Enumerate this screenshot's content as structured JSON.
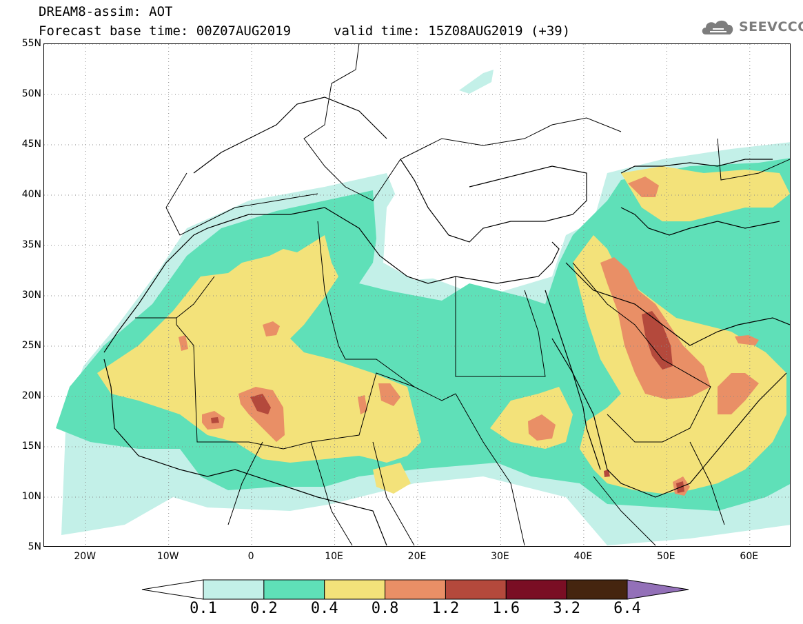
{
  "header": {
    "title": "DREAM8-assim: AOT",
    "base_time": "Forecast base time: 00Z07AUG2019",
    "valid_time": "valid time: 15Z08AUG2019 (+39)"
  },
  "logo": {
    "text": "SEEVCCC",
    "icon": "cloud-icon",
    "color": "#7d7d7d"
  },
  "map": {
    "lon_range": [
      -25,
      65
    ],
    "lat_range": [
      5,
      55
    ],
    "gridlines": "dotted",
    "lat_ticks": [
      {
        "value": 55,
        "label": "55N"
      },
      {
        "value": 50,
        "label": "50N"
      },
      {
        "value": 45,
        "label": "45N"
      },
      {
        "value": 40,
        "label": "40N"
      },
      {
        "value": 35,
        "label": "35N"
      },
      {
        "value": 30,
        "label": "30N"
      },
      {
        "value": 25,
        "label": "25N"
      },
      {
        "value": 20,
        "label": "20N"
      },
      {
        "value": 15,
        "label": "15N"
      },
      {
        "value": 10,
        "label": "10N"
      },
      {
        "value": 5,
        "label": "5N"
      }
    ],
    "lon_ticks": [
      {
        "value": -20,
        "label": "20W"
      },
      {
        "value": -10,
        "label": "10W"
      },
      {
        "value": 0,
        "label": "0"
      },
      {
        "value": 10,
        "label": "10E"
      },
      {
        "value": 20,
        "label": "20E"
      },
      {
        "value": 30,
        "label": "30E"
      },
      {
        "value": 40,
        "label": "40E"
      },
      {
        "value": 50,
        "label": "50E"
      },
      {
        "value": 60,
        "label": "60E"
      }
    ]
  },
  "colorbar": {
    "levels": [
      "0.1",
      "0.2",
      "0.4",
      "0.8",
      "1.2",
      "1.6",
      "3.2",
      "6.4"
    ],
    "colors": [
      "#ffffff",
      "#c3f0e8",
      "#5fe0b8",
      "#f3e27a",
      "#e98f66",
      "#b4493c",
      "#7a0e24",
      "#45250f",
      "#9370b8"
    ]
  }
}
